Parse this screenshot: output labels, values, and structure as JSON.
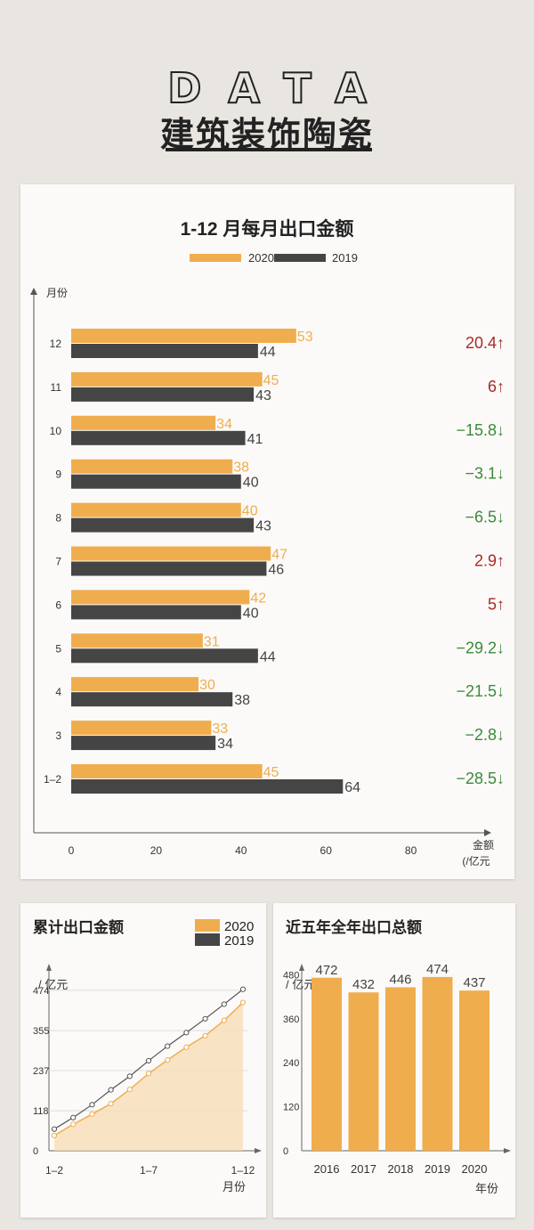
{
  "header": {
    "data_word": "DATA",
    "title": "建筑装饰陶瓷"
  },
  "main_chart": {
    "title": "1-12 月每月出口金额",
    "legend": [
      "2020",
      "2019"
    ],
    "y_axis_label": "月份",
    "x_axis_label_1": "金额",
    "x_axis_label_2": "(/亿元",
    "colors": {
      "2020": "#f0ad4e",
      "2019": "#454545",
      "up": "#a82a2a",
      "down": "#3c8a3c"
    },
    "up_arrow": "↑",
    "down_arrow": "↓"
  },
  "cum_chart": {
    "title": "累计出口金额",
    "unit": "/ 亿元",
    "x_axis_label": "月份"
  },
  "annual_chart": {
    "title": "近五年全年出口总额",
    "unit": "/ 亿元",
    "x_axis_label": "年份"
  },
  "chart_data": [
    {
      "type": "bar",
      "orientation": "horizontal",
      "title": "1-12 月每月出口金额",
      "categories": [
        "12",
        "11",
        "10",
        "9",
        "8",
        "7",
        "6",
        "5",
        "4",
        "3",
        "1–2"
      ],
      "series": [
        {
          "name": "2020",
          "values": [
            53,
            45,
            34,
            38,
            40,
            47,
            42,
            31,
            30,
            33,
            45
          ]
        },
        {
          "name": "2019",
          "values": [
            44,
            43,
            41,
            40,
            43,
            46,
            40,
            44,
            38,
            34,
            64
          ]
        }
      ],
      "change_pct": [
        20.4,
        6,
        -15.8,
        -3.1,
        -6.5,
        2.9,
        5,
        -29.2,
        -21.5,
        -2.8,
        -28.5
      ],
      "change_labels": [
        "20.4",
        "6",
        "−15.8",
        "−3.1",
        "−6.5",
        "2.9",
        "5",
        "−29.2",
        "−21.5",
        "−2.8",
        "−28.5"
      ],
      "xlim": [
        0,
        100
      ],
      "xticks": [
        0,
        20,
        40,
        60,
        80
      ],
      "xlabel": "金额(/亿元",
      "ylabel": "月份"
    },
    {
      "type": "line",
      "title": "累计出口金额",
      "x": [
        "1-2",
        "3",
        "4",
        "5",
        "6",
        "7",
        "8",
        "9",
        "10",
        "11",
        "12"
      ],
      "xtick_labels": [
        "1–2",
        "1–7",
        "1–12"
      ],
      "series": [
        {
          "name": "2020",
          "values": [
            45,
            78,
            108,
            139,
            181,
            228,
            268,
            306,
            340,
            385,
            438
          ]
        },
        {
          "name": "2019",
          "values": [
            64,
            98,
            136,
            180,
            220,
            266,
            309,
            349,
            390,
            433,
            477
          ]
        }
      ],
      "yticks": [
        0,
        118,
        237,
        355,
        474
      ],
      "ylim": [
        0,
        500
      ],
      "ylabel": "/ 亿元",
      "xlabel": "月份"
    },
    {
      "type": "bar",
      "title": "近五年全年出口总额",
      "categories": [
        "2016",
        "2017",
        "2018",
        "2019",
        "2020"
      ],
      "values": [
        472,
        432,
        446,
        474,
        437
      ],
      "yticks": [
        0,
        120,
        240,
        360,
        480
      ],
      "ylim": [
        0,
        520
      ],
      "ylabel": "/ 亿元",
      "xlabel": "年份"
    }
  ]
}
